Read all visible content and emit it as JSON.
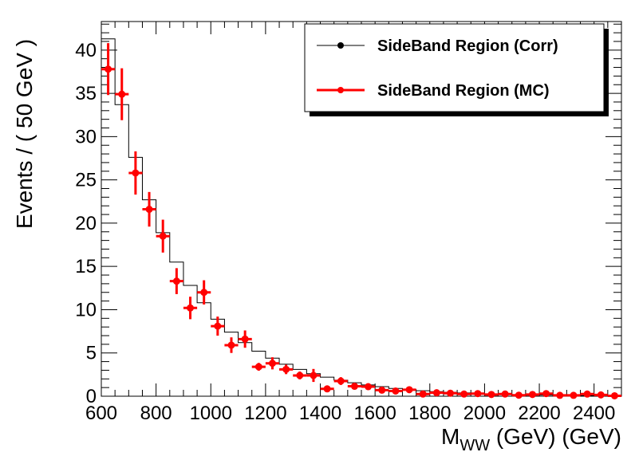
{
  "chart_data": {
    "type": "histogram",
    "xlabel_main": "M",
    "xlabel_sub": "WW",
    "xlabel_rest": " (GeV) (GeV)",
    "ylabel": "Events / ( 50 GeV )",
    "xlim": [
      600,
      2500
    ],
    "ylim": [
      0,
      43.3
    ],
    "x_ticks": [
      600,
      800,
      1000,
      1200,
      1400,
      1600,
      1800,
      2000,
      2200,
      2400
    ],
    "y_ticks": [
      0,
      5,
      10,
      15,
      20,
      25,
      30,
      35,
      40
    ],
    "legend": {
      "position": "top-right",
      "entries": [
        "SideBand Region (Corr)",
        "SideBand Region (MC)"
      ]
    },
    "series": [
      {
        "name": "SideBand Region (Corr)",
        "kind": "step",
        "color": "#000000",
        "bin_edges": [
          600,
          650,
          700,
          750,
          800,
          850,
          900,
          950,
          1000,
          1050,
          1100,
          1150,
          1200,
          1250,
          1300,
          1350,
          1400,
          1450,
          1500,
          1550,
          1600,
          1650,
          1700,
          1750,
          1800,
          1850,
          1900,
          1950,
          2000,
          2050,
          2100,
          2150,
          2200,
          2250,
          2300,
          2350,
          2400,
          2450,
          2500
        ],
        "values": [
          41.3,
          33.7,
          27.6,
          22.7,
          18.9,
          15.5,
          12.8,
          10.8,
          8.9,
          7.4,
          6.2,
          5.2,
          4.4,
          3.7,
          3.1,
          2.6,
          2.2,
          1.85,
          1.55,
          1.3,
          1.1,
          0.9,
          0.76,
          0.63,
          0.53,
          0.45,
          0.38,
          0.32,
          0.27,
          0.23,
          0.19,
          0.16,
          0.14,
          0.12,
          0.1,
          0.08,
          0.07,
          0.06
        ]
      },
      {
        "name": "SideBand Region (MC)",
        "kind": "points",
        "color": "#ff0000",
        "x": [
          625,
          675,
          725,
          775,
          825,
          875,
          925,
          975,
          1025,
          1075,
          1125,
          1175,
          1225,
          1275,
          1325,
          1375,
          1425,
          1475,
          1525,
          1575,
          1625,
          1675,
          1725,
          1775,
          1825,
          1875,
          1925,
          1975,
          2025,
          2075,
          2125,
          2175,
          2225,
          2275,
          2325,
          2375,
          2425,
          2475
        ],
        "y": [
          37.8,
          34.9,
          25.8,
          21.6,
          18.5,
          13.3,
          10.2,
          12.0,
          8.1,
          5.9,
          6.6,
          3.4,
          3.8,
          3.1,
          2.4,
          2.4,
          0.85,
          1.75,
          1.15,
          1.1,
          0.7,
          0.6,
          0.75,
          0.25,
          0.4,
          0.35,
          0.25,
          0.3,
          0.2,
          0.25,
          0.12,
          0.2,
          0.3,
          0.1,
          0.1,
          0.25,
          0.15,
          0.05
        ],
        "yerr": [
          3.0,
          3.0,
          2.5,
          2.0,
          1.9,
          1.5,
          1.3,
          1.4,
          1.1,
          0.9,
          1.0,
          0.45,
          0.7,
          0.55,
          0.45,
          0.75,
          0.25,
          0.45,
          0.3,
          0.25,
          0.2,
          0.2,
          0.25,
          0.15,
          0.2,
          0.15,
          0.15,
          0.15,
          0.1,
          0.15,
          0.1,
          0.1,
          0.15,
          0.1,
          0.1,
          0.1,
          0.1,
          0.05
        ]
      }
    ]
  }
}
